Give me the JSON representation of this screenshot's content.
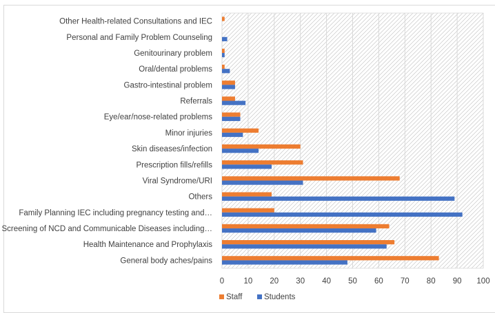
{
  "chart_data": {
    "type": "bar",
    "orientation": "horizontal",
    "title": "",
    "xlabel": "",
    "ylabel": "",
    "xlim": [
      0,
      100
    ],
    "x_ticks": [
      "0",
      "10",
      "20",
      "30",
      "40",
      "50",
      "60",
      "70",
      "80",
      "90",
      "100"
    ],
    "grid": true,
    "plot_area_fill": "diagonal-hatch",
    "legend_position": "bottom",
    "categories": [
      "General body aches/pains",
      "Health Maintenance and Prophylaxis",
      "Screening of NCD and Communicable Diseases including…",
      "Family Planning IEC including pregnancy testing and…",
      "Others",
      "Viral Syndrome/URI",
      "Prescription fills/refills",
      "Skin diseases/infection",
      "Minor injuries",
      "Eye/ear/nose-related problems",
      "Referrals",
      "Gastro-intestinal problem",
      "Oral/dental problems",
      "Genitourinary problem",
      "Personal and Family Problem Counseling",
      "Other Health-related Consultations and IEC"
    ],
    "series": [
      {
        "name": "Staff",
        "color": "#ed7d31",
        "values": [
          83,
          66,
          64,
          20,
          19,
          68,
          31,
          30,
          14,
          7,
          5,
          5,
          1,
          1,
          0,
          1
        ]
      },
      {
        "name": "Students",
        "color": "#4472c4",
        "values": [
          48,
          63,
          59,
          92,
          89,
          31,
          19,
          14,
          8,
          7,
          9,
          5,
          3,
          1,
          2,
          0
        ]
      }
    ]
  }
}
